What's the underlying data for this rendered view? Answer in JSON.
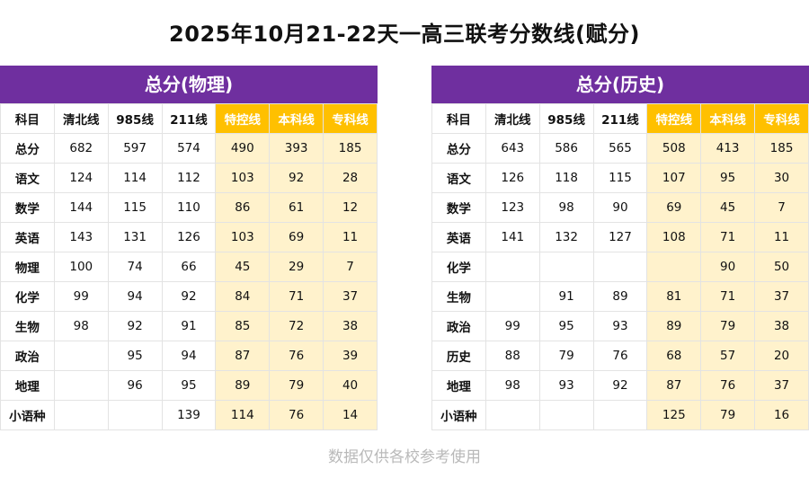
{
  "title": "2025年10月21-22天一高三联考分数线(赋分)",
  "colors": {
    "header_purple": "#6f2f9f",
    "highlight_yellow": "#ffc000",
    "highlight_light": "#fff2cc"
  },
  "headers": [
    "科目",
    "清北线",
    "985线",
    "211线",
    "特控线",
    "本科线",
    "专科线"
  ],
  "left": {
    "title": "总分(物理)",
    "rows": [
      [
        "总分",
        "682",
        "597",
        "574",
        "490",
        "393",
        "185"
      ],
      [
        "语文",
        "124",
        "114",
        "112",
        "103",
        "92",
        "28"
      ],
      [
        "数学",
        "144",
        "115",
        "110",
        "86",
        "61",
        "12"
      ],
      [
        "英语",
        "143",
        "131",
        "126",
        "103",
        "69",
        "11"
      ],
      [
        "物理",
        "100",
        "74",
        "66",
        "45",
        "29",
        "7"
      ],
      [
        "化学",
        "99",
        "94",
        "92",
        "84",
        "71",
        "37"
      ],
      [
        "生物",
        "98",
        "92",
        "91",
        "85",
        "72",
        "38"
      ],
      [
        "政治",
        "",
        "95",
        "94",
        "87",
        "76",
        "39"
      ],
      [
        "地理",
        "",
        "96",
        "95",
        "89",
        "79",
        "40"
      ],
      [
        "小语种",
        "",
        "",
        "139",
        "114",
        "76",
        "14"
      ]
    ]
  },
  "right": {
    "title": "总分(历史)",
    "rows": [
      [
        "总分",
        "643",
        "586",
        "565",
        "508",
        "413",
        "185"
      ],
      [
        "语文",
        "126",
        "118",
        "115",
        "107",
        "95",
        "30"
      ],
      [
        "数学",
        "123",
        "98",
        "90",
        "69",
        "45",
        "7"
      ],
      [
        "英语",
        "141",
        "132",
        "127",
        "108",
        "71",
        "11"
      ],
      [
        "化学",
        "",
        "",
        "",
        "",
        "90",
        "50"
      ],
      [
        "生物",
        "",
        "91",
        "89",
        "81",
        "71",
        "37"
      ],
      [
        "政治",
        "99",
        "95",
        "93",
        "89",
        "79",
        "38"
      ],
      [
        "历史",
        "88",
        "79",
        "76",
        "68",
        "57",
        "20"
      ],
      [
        "地理",
        "98",
        "93",
        "92",
        "87",
        "76",
        "37"
      ],
      [
        "小语种",
        "",
        "",
        "",
        "125",
        "79",
        "16"
      ]
    ]
  },
  "footer": "数据仅供各校参考使用"
}
